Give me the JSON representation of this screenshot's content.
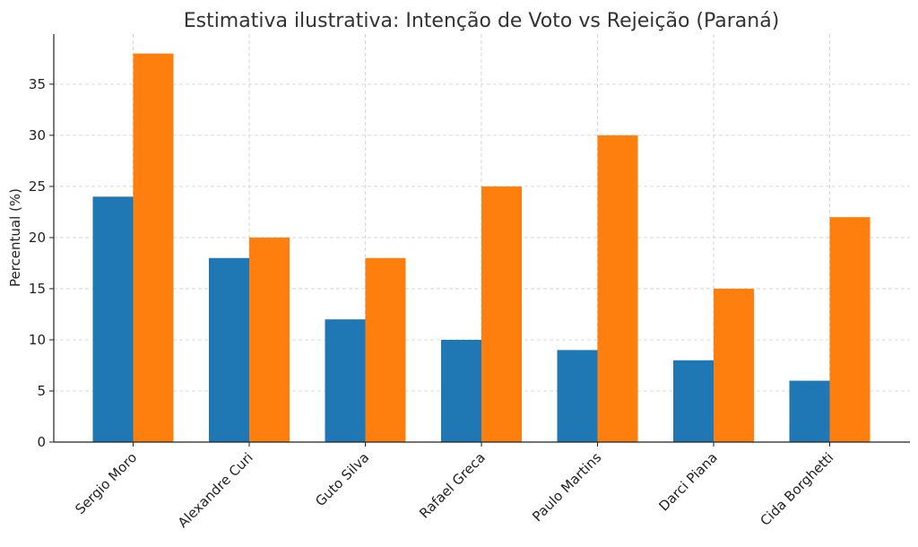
{
  "chart_data": {
    "type": "bar",
    "title": "Estimativa ilustrativa: Intenção de Voto vs Rejeição (Paraná)",
    "xlabel": "",
    "ylabel": "Percentual (%)",
    "categories": [
      "Sergio Moro",
      "Alexandre Curi",
      "Guto Silva",
      "Rafael Greca",
      "Paulo Martins",
      "Darci Piana",
      "Cida Borghetti"
    ],
    "series": [
      {
        "values": [
          24,
          18,
          12,
          10,
          9,
          8,
          6
        ],
        "color": "#1f77b4"
      },
      {
        "values": [
          38,
          20,
          18,
          25,
          30,
          15,
          22
        ],
        "color": "#ff7f0e"
      }
    ],
    "ylim": [
      0,
      39.9
    ],
    "yticks": [
      0,
      5,
      10,
      15,
      20,
      25,
      30,
      35
    ],
    "grid": true,
    "legend": "none"
  }
}
